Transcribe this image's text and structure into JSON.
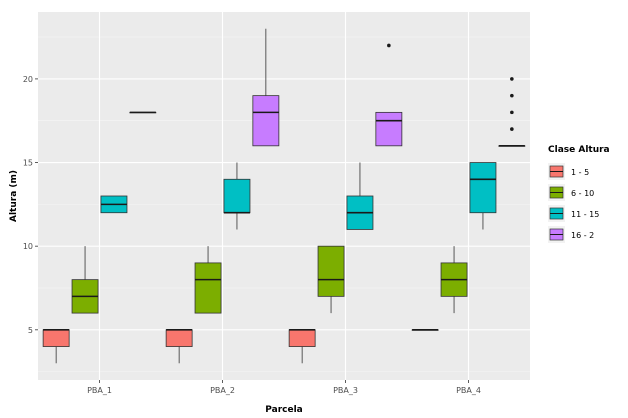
{
  "chart_data": {
    "type": "boxplot",
    "xlabel": "Parcela",
    "ylabel": "Altura (m)",
    "categories": [
      "PBA_1",
      "PBA_2",
      "PBA_3",
      "PBA_4"
    ],
    "y_ticks": [
      5,
      10,
      15,
      20
    ],
    "ylim": [
      2,
      24
    ],
    "grid": true,
    "legend": {
      "title": "Clase Altura",
      "position": "right",
      "entries": [
        {
          "label": "1 - 5",
          "color": "#F8766D"
        },
        {
          "label": "6 - 10",
          "color": "#7CAE00"
        },
        {
          "label": "11 - 15",
          "color": "#00BFC4"
        },
        {
          "label": "16 - 2",
          "color": "#C77CFF"
        }
      ]
    },
    "boxes": [
      {
        "category": "PBA_1",
        "group": 0,
        "min": 3,
        "q1": 4,
        "median": 5,
        "q3": 5,
        "max": 5,
        "outliers": []
      },
      {
        "category": "PBA_1",
        "group": 1,
        "min": 6,
        "q1": 6,
        "median": 7,
        "q3": 8,
        "max": 10,
        "outliers": []
      },
      {
        "category": "PBA_1",
        "group": 2,
        "min": 12,
        "q1": 12,
        "median": 12.5,
        "q3": 13,
        "max": 13,
        "outliers": []
      },
      {
        "category": "PBA_1",
        "group": 3,
        "min": 18,
        "q1": 18,
        "median": 18,
        "q3": 18,
        "max": 18,
        "outliers": []
      },
      {
        "category": "PBA_2",
        "group": 0,
        "min": 3,
        "q1": 4,
        "median": 5,
        "q3": 5,
        "max": 5,
        "outliers": []
      },
      {
        "category": "PBA_2",
        "group": 1,
        "min": 6,
        "q1": 6,
        "median": 8,
        "q3": 9,
        "max": 10,
        "outliers": []
      },
      {
        "category": "PBA_2",
        "group": 2,
        "min": 11,
        "q1": 12,
        "median": 12,
        "q3": 14,
        "max": 15,
        "outliers": []
      },
      {
        "category": "PBA_2",
        "group": 3,
        "min": 16,
        "q1": 16,
        "median": 18,
        "q3": 19,
        "max": 23,
        "outliers": []
      },
      {
        "category": "PBA_3",
        "group": 0,
        "min": 3,
        "q1": 4,
        "median": 5,
        "q3": 5,
        "max": 5,
        "outliers": []
      },
      {
        "category": "PBA_3",
        "group": 1,
        "min": 6,
        "q1": 7,
        "median": 8,
        "q3": 10,
        "max": 10,
        "outliers": []
      },
      {
        "category": "PBA_3",
        "group": 2,
        "min": 11,
        "q1": 11,
        "median": 12,
        "q3": 13,
        "max": 15,
        "outliers": []
      },
      {
        "category": "PBA_3",
        "group": 3,
        "min": 16,
        "q1": 16,
        "median": 17.5,
        "q3": 18,
        "max": 18,
        "outliers": [
          22
        ]
      },
      {
        "category": "PBA_4",
        "group": 0,
        "min": 5,
        "q1": 5,
        "median": 5,
        "q3": 5,
        "max": 5,
        "outliers": []
      },
      {
        "category": "PBA_4",
        "group": 1,
        "min": 6,
        "q1": 7,
        "median": 8,
        "q3": 9,
        "max": 10,
        "outliers": []
      },
      {
        "category": "PBA_4",
        "group": 2,
        "min": 11,
        "q1": 12,
        "median": 14,
        "q3": 15,
        "max": 15,
        "outliers": []
      },
      {
        "category": "PBA_4",
        "group": 3,
        "min": 16,
        "q1": 16,
        "median": 16,
        "q3": 16,
        "max": 16,
        "outliers": [
          17,
          18,
          19,
          20
        ]
      }
    ]
  }
}
